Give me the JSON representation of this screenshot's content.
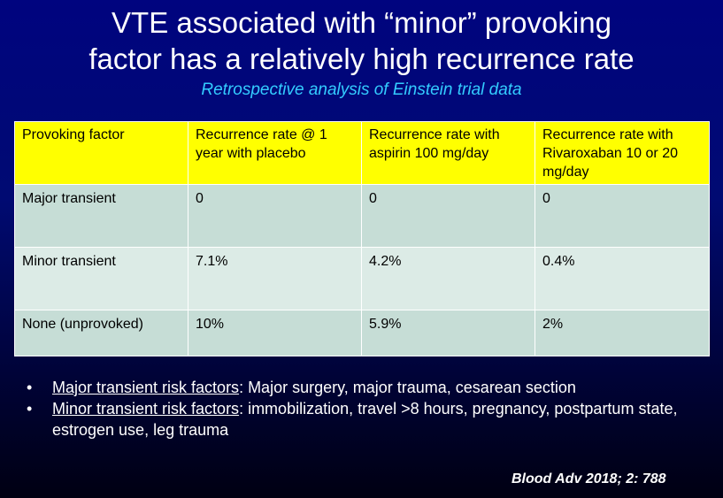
{
  "slide": {
    "title_line1": "VTE associated with “minor” provoking",
    "title_line2": "factor has a relatively high recurrence rate",
    "subtitle": "Retrospective analysis of Einstein trial data"
  },
  "table": {
    "headers": [
      "Provoking factor",
      "Recurrence rate @ 1 year with placebo",
      "Recurrence rate with aspirin 100 mg/day",
      "Recurrence rate with Rivaroxaban 10 or 20 mg/day"
    ],
    "rows": [
      [
        "Major transient",
        "0",
        "0",
        "0"
      ],
      [
        "Minor transient",
        "7.1%",
        "4.2%",
        "0.4%"
      ],
      [
        "None (unprovoked)",
        "10%",
        "5.9%",
        "2%"
      ]
    ]
  },
  "bullets": [
    {
      "marker": "•",
      "term": "Major transient risk factors",
      "text": ": Major surgery, major trauma, cesarean section"
    },
    {
      "marker": "•",
      "term": "Minor transient risk factors",
      "text": ": immobilization, travel >8 hours, pregnancy, postpartum state, estrogen use, leg trauma"
    }
  ],
  "citation": "Blood Adv 2018; 2: 788"
}
